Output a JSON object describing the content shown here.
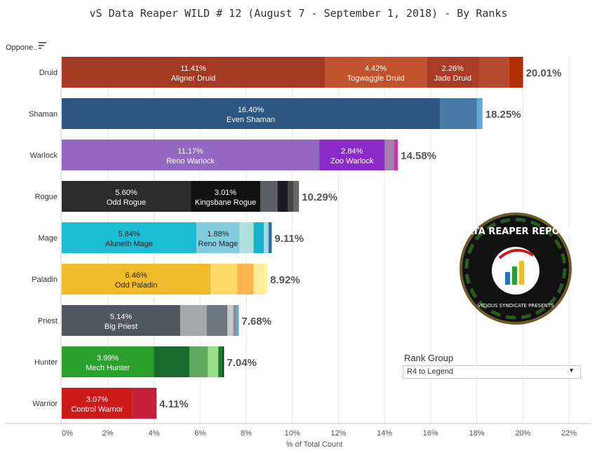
{
  "title": "vS Data Reaper WILD # 12 (August 7 - September 1, 2018) - By Ranks",
  "header_label": "Oppone..",
  "sort_icon": "sort-descending-icon",
  "filter": {
    "label": "Rank Group",
    "value": "R4 to Legend",
    "caret": "▼"
  },
  "logo": {
    "text": "DATA REAPER REPORT",
    "subtext": "VICIOUS SYNDICATE PRESENTS",
    "icon": "data-reaper-logo"
  },
  "chart_data": {
    "type": "bar",
    "orientation": "horizontal",
    "stacked": true,
    "xlabel": "% of Total Count",
    "xlim": [
      0,
      22
    ],
    "x_ticks": [
      "0%",
      "2%",
      "4%",
      "6%",
      "8%",
      "10%",
      "12%",
      "14%",
      "16%",
      "18%",
      "20%",
      "22%"
    ],
    "grid": true,
    "categories": [
      {
        "name": "Druid",
        "total": "20.01%",
        "segments": [
          {
            "value": 11.41,
            "pct": "11.41%",
            "label": "Aligner Druid",
            "color": "#a33a23"
          },
          {
            "value": 4.42,
            "pct": "4.42%",
            "label": "Togwaggle Druid",
            "color": "#c0532d"
          },
          {
            "value": 2.26,
            "pct": "2.26%",
            "label": "Jade Druid",
            "color": "#a93c27"
          },
          {
            "value": 1.32,
            "pct": "",
            "label": "",
            "color": "#b54a2f"
          },
          {
            "value": 0.6,
            "pct": "",
            "label": "",
            "color": "#b23000"
          }
        ]
      },
      {
        "name": "Shaman",
        "total": "18.25%",
        "segments": [
          {
            "value": 16.4,
            "pct": "16.40%",
            "label": "Even Shaman",
            "color": "#2c5580"
          },
          {
            "value": 1.6,
            "pct": "",
            "label": "",
            "color": "#4a7aa6"
          },
          {
            "value": 0.25,
            "pct": "",
            "label": "",
            "color": "#5fa7d9"
          }
        ]
      },
      {
        "name": "Warlock",
        "total": "14.58%",
        "segments": [
          {
            "value": 11.17,
            "pct": "11.17%",
            "label": "Reno Warlock",
            "color": "#9467c0"
          },
          {
            "value": 2.84,
            "pct": "2.84%",
            "label": "Zoo Warlock",
            "color": "#8a2ac7"
          },
          {
            "value": 0.4,
            "pct": "",
            "label": "",
            "color": "#a57ea8"
          },
          {
            "value": 0.17,
            "pct": "",
            "label": "",
            "color": "#c03ab0"
          }
        ]
      },
      {
        "name": "Rogue",
        "total": "10.29%",
        "segments": [
          {
            "value": 5.6,
            "pct": "5.60%",
            "label": "Odd Rogue",
            "color": "#2b2b2b"
          },
          {
            "value": 3.01,
            "pct": "3.01%",
            "label": "Kingsbane Rogue",
            "color": "#111111"
          },
          {
            "value": 0.75,
            "pct": "",
            "label": "",
            "color": "#5a5f66"
          },
          {
            "value": 0.45,
            "pct": "",
            "label": "",
            "color": "#1c1a26"
          },
          {
            "value": 0.25,
            "pct": "",
            "label": "",
            "color": "#464646"
          },
          {
            "value": 0.23,
            "pct": "",
            "label": "",
            "color": "#666666"
          }
        ]
      },
      {
        "name": "Mage",
        "total": "9.11%",
        "segments": [
          {
            "value": 5.84,
            "pct": "5.84%",
            "label": "Aluneth Mage",
            "color": "#1cbcd4",
            "dark": true
          },
          {
            "value": 1.88,
            "pct": "1.88%",
            "label": "Reno Mage",
            "color": "#84cde0",
            "dark": true
          },
          {
            "value": 0.6,
            "pct": "",
            "label": "",
            "color": "#b2e0de"
          },
          {
            "value": 0.45,
            "pct": "",
            "label": "",
            "color": "#16b3c9"
          },
          {
            "value": 0.2,
            "pct": "",
            "label": "",
            "color": "#9fd8e8"
          },
          {
            "value": 0.14,
            "pct": "",
            "label": "",
            "color": "#2f6f9f"
          }
        ]
      },
      {
        "name": "Paladin",
        "total": "8.92%",
        "segments": [
          {
            "value": 6.46,
            "pct": "6.46%",
            "label": "Odd Paladin",
            "color": "#f0bc2c",
            "dark": true
          },
          {
            "value": 1.15,
            "pct": "",
            "label": "",
            "color": "#ffd86a"
          },
          {
            "value": 0.7,
            "pct": "",
            "label": "",
            "color": "#f9b54e"
          },
          {
            "value": 0.45,
            "pct": "",
            "label": "",
            "color": "#ffe99a"
          },
          {
            "value": 0.16,
            "pct": "",
            "label": "",
            "color": "#fff5a0"
          }
        ]
      },
      {
        "name": "Priest",
        "total": "7.68%",
        "segments": [
          {
            "value": 5.14,
            "pct": "5.14%",
            "label": "Big Priest",
            "color": "#4f5761"
          },
          {
            "value": 1.15,
            "pct": "",
            "label": "",
            "color": "#a5a9ab"
          },
          {
            "value": 0.9,
            "pct": "",
            "label": "",
            "color": "#6e7780"
          },
          {
            "value": 0.25,
            "pct": "",
            "label": "",
            "color": "#c6c9cb"
          },
          {
            "value": 0.16,
            "pct": "",
            "label": "",
            "color": "#8a9096"
          },
          {
            "value": 0.08,
            "pct": "",
            "label": "",
            "color": "#5fa7d9"
          }
        ]
      },
      {
        "name": "Hunter",
        "total": "7.04%",
        "segments": [
          {
            "value": 3.99,
            "pct": "3.99%",
            "label": "Mech Hunter",
            "color": "#2ca02c"
          },
          {
            "value": 1.55,
            "pct": "",
            "label": "",
            "color": "#1b6b30"
          },
          {
            "value": 0.8,
            "pct": "",
            "label": "",
            "color": "#5eaa5e"
          },
          {
            "value": 0.45,
            "pct": "",
            "label": "",
            "color": "#98df8a"
          },
          {
            "value": 0.17,
            "pct": "",
            "label": "",
            "color": "#1f7a32"
          },
          {
            "value": 0.08,
            "pct": "",
            "label": "",
            "color": "#0a4f1a"
          }
        ]
      },
      {
        "name": "Warrior",
        "total": "4.11%",
        "segments": [
          {
            "value": 3.07,
            "pct": "3.07%",
            "label": "Control Warrior",
            "color": "#cc1a1a"
          },
          {
            "value": 1.04,
            "pct": "",
            "label": "",
            "color": "#c4203c"
          }
        ]
      }
    ]
  }
}
